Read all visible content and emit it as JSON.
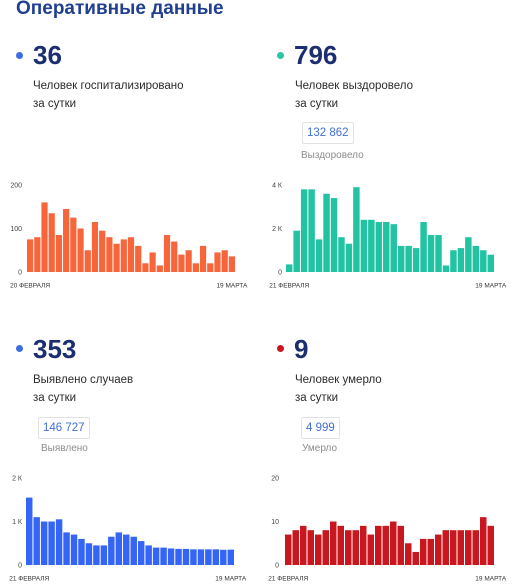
{
  "header": {
    "title": "Оперативные данные"
  },
  "theme": {
    "title_color": "#213f91",
    "number_color": "#1b2f70",
    "text_color": "#2b2b2b",
    "total_color": "#4270d6",
    "muted_color": "#8c8c8c"
  },
  "stats": {
    "hospitalized": {
      "value": "36",
      "label_line1": "Человек госпитализировано",
      "label_line2": "за сутки",
      "dot_color": "#3b6fe0"
    },
    "recovered": {
      "value": "796",
      "label_line1": "Человек выздоровело",
      "label_line2": "за сутки",
      "total_value": "132 862",
      "total_label": "Выздоровело",
      "dot_color": "#2ec4a5"
    },
    "detected": {
      "value": "353",
      "label_line1": "Выявлено случаев",
      "label_line2": "за сутки",
      "total_value": "146 727",
      "total_label": "Выявлено",
      "dot_color": "#3b6fe0"
    },
    "died": {
      "value": "9",
      "label_line1": "Человек умерло",
      "label_line2": "за сутки",
      "total_value": "4 999",
      "total_label": "Умерло",
      "dot_color": "#c8161e"
    }
  },
  "chart_data": [
    {
      "type": "bar",
      "xticks": [
        "20 ФЕВРАЛЯ",
        "19 МАРТА"
      ],
      "yticks": [
        {
          "value": 0,
          "label": "0"
        },
        {
          "value": 100,
          "label": "100"
        },
        {
          "value": 200,
          "label": "200"
        }
      ],
      "ylim": [
        0,
        200
      ],
      "values": [
        75,
        80,
        160,
        135,
        85,
        145,
        125,
        100,
        50,
        115,
        95,
        80,
        65,
        75,
        80,
        60,
        20,
        45,
        15,
        85,
        70,
        40,
        50,
        20,
        60,
        20,
        45,
        50,
        36
      ],
      "color": "#f7663b",
      "grid": false,
      "legend": false
    },
    {
      "type": "bar",
      "xticks": [
        "21 ФЕВРАЛЯ",
        "19 МАРТА"
      ],
      "yticks": [
        {
          "value": 0,
          "label": "0"
        },
        {
          "value": 2000,
          "label": "2 К"
        },
        {
          "value": 4000,
          "label": "4 К"
        }
      ],
      "ylim": [
        0,
        4000
      ],
      "values": [
        350,
        1900,
        3800,
        3800,
        1500,
        3600,
        3400,
        1600,
        1300,
        3900,
        2400,
        2400,
        2300,
        2300,
        2200,
        1200,
        1200,
        1100,
        2300,
        1700,
        1700,
        300,
        1000,
        1100,
        1600,
        1200,
        1000,
        796
      ],
      "color": "#22c3a3",
      "grid": false,
      "legend": false
    },
    {
      "type": "bar",
      "xticks": [
        "21 ФЕВРАЛЯ",
        "19 МАРТА"
      ],
      "yticks": [
        {
          "value": 0,
          "label": "0"
        },
        {
          "value": 1000,
          "label": "1 К"
        },
        {
          "value": 2000,
          "label": "2 К"
        }
      ],
      "ylim": [
        0,
        2000
      ],
      "values": [
        1550,
        1100,
        1000,
        1000,
        1050,
        750,
        700,
        600,
        500,
        450,
        450,
        650,
        750,
        700,
        650,
        550,
        450,
        400,
        400,
        380,
        370,
        370,
        360,
        360,
        360,
        360,
        350,
        353
      ],
      "color": "#3565f5",
      "grid": false,
      "legend": false
    },
    {
      "type": "bar",
      "xticks": [
        "21 ФЕВРАЛЯ",
        "19 МАРТА"
      ],
      "yticks": [
        {
          "value": 0,
          "label": "0"
        },
        {
          "value": 10,
          "label": "10"
        },
        {
          "value": 20,
          "label": "20"
        }
      ],
      "ylim": [
        0,
        20
      ],
      "values": [
        7,
        8,
        9,
        8,
        7,
        8,
        10,
        9,
        8,
        8,
        9,
        7,
        9,
        9,
        10,
        9,
        5,
        3,
        6,
        6,
        7,
        8,
        8,
        8,
        8,
        8,
        11,
        9
      ],
      "color": "#c8171e",
      "grid": false,
      "legend": false
    }
  ]
}
